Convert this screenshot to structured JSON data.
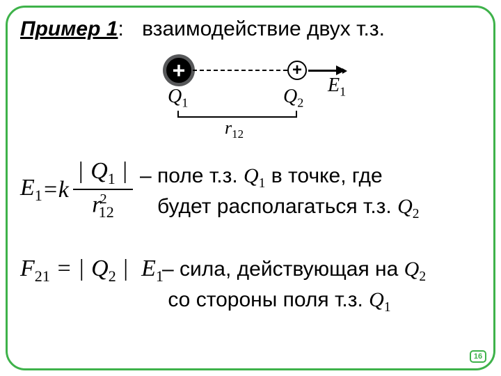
{
  "colors": {
    "frame_border": "#3eb24a",
    "background": "#ffffff",
    "text": "#000000",
    "charge_shadow": "#57585a"
  },
  "title": {
    "label": "Пример 1",
    "colon": ":",
    "text": "взаимодействие двух т.з."
  },
  "diagram": {
    "q1": "Q",
    "q1_sub": "1",
    "q2": "Q",
    "q2_sub": "2",
    "E": "E",
    "E_sub": "1",
    "r": "r",
    "r_sub": "12",
    "plus": "+"
  },
  "formula_E": {
    "lhs_sym": "E",
    "lhs_sub": "1",
    "eq": " = ",
    "k": "k",
    "num_Q": "Q",
    "num_sub": "1",
    "den_r": "r",
    "den_sub": "12",
    "den_pow": "2"
  },
  "desc1": {
    "line1a": "– поле т.з. ",
    "q1": "Q",
    "q1_sub": "1",
    "line1b": " в точке, где",
    "line2a": "будет располагаться т.з. ",
    "q2": "Q",
    "q2_sub": "2"
  },
  "formula_F": {
    "F": "F",
    "F_sub": "21",
    "eq": " = ",
    "Q": "Q",
    "Q_sub": "2",
    "E": "E",
    "E_sub": "1"
  },
  "desc2": {
    "line1a": "– сила, действующая на ",
    "q2": "Q",
    "q2_sub": "2",
    "line2a": "со стороны поля т.з. ",
    "q1": "Q",
    "q1_sub": "1"
  },
  "page_number": "16"
}
